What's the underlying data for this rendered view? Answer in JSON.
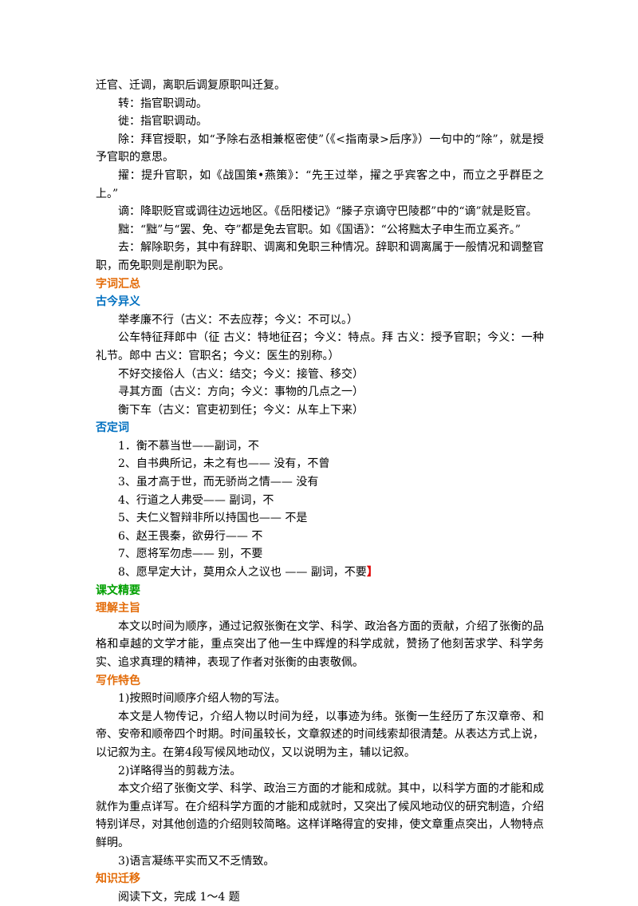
{
  "intro": [
    "迁官、迁调，离职后调复原职叫迁复。",
    "转：指官职调动。",
    "徙：指官职调动。",
    "除：拜官授职，如“予除右丞相兼枢密使”（《<指南录>后序》）一句中的“除”，就是授予官职的意思。",
    "擢：提升官职，如《战国策•燕策》：“先王过举，擢之乎宾客之中，而立之乎群臣之上。”",
    "谪：降职贬官或调往边远地区。《岳阳楼记》“滕子京谪守巴陵郡”中的“谪”就是贬官。",
    "黜：“黜”与“罢、免、夺”都是免去官职。如《国语》：“公将黜太子申生而立奚齐。”",
    "去：解除职务，其中有辞职、调离和免职三种情况。辞职和调离属于一般情况和调整官职，而免职则是削职为民。"
  ],
  "vocab": {
    "title": "字词汇总",
    "gujin": {
      "title": "古今异义",
      "items": [
        "举孝廉不行（古义：不去应荐；今义：不可以。）",
        "公车特征拜郎中（征 古义：特地征召；今义：特点。拜 古义：授予官职；今义：一种礼节。郎中 古义：官职名；今义：医生的别称。）",
        "不好交接俗人（古义：结交；今义：接管、移交）",
        "寻其方面（古义：方向；今义：事物的几点之一）",
        "衡下车（古义：官吏初到任；今义：从车上下来）"
      ]
    },
    "negation": {
      "title": "否定词",
      "items": [
        "1．衡不慕当世——副词，不",
        "2、自书典所记，未之有也—— 没有，不曾",
        "3、虽才高于世，而无骄尚之情—— 没有",
        "4、行道之人弗受—— 副词，不",
        "5、夫仁义智辩非所以持国也—— 不是",
        "6、赵王畏秦，欲毋行—— 不",
        "7、愿将军勿虑—— 别，不要",
        "8、愿早定大计，莫用众人之议也 —— 副词，不要"
      ],
      "bracket": "】"
    }
  },
  "essentials": {
    "title": "课文精要",
    "theme": {
      "title": "理解主旨",
      "text": "本文以时间为顺序，通过记叙张衡在文学、科学、政治各方面的贡献，介绍了张衡的品格和卓越的文学才能，重点突出了他一生中辉煌的科学成就，赞扬了他刻苦求学、科学务实、追求真理的精神，表现了作者对张衡的由衷敬佩。"
    },
    "style": {
      "title": "写作特色",
      "paragraphs": [
        "1)按照时间顺序介绍人物的写法。",
        "本文是人物传记，介绍人物以时间为经，以事迹为纬。张衡一生经历了东汉章帝、和帝、安帝和顺帝四个时期。时间虽较长，文章叙述的时间线索却很清楚。从表达方式上说，以记叙为主。在第4段写候风地动仪，又以说明为主，辅以记叙。",
        "2)详略得当的剪裁方法。",
        "本文介绍了张衡文学、科学、政治三方面的才能和成就。其中，以科学方面的才能和成就作为重点详写。在介绍科学方面的才能和成就时，又突出了候风地动仪的研究制造，介绍特别详尽，对其他创造的介绍则较简略。这样详略得宜的安排，使文章重点突出，人物特点鲜明。",
        "3)语言凝练平实而又不乏情致。"
      ]
    }
  },
  "transfer": {
    "title": "知识迁移",
    "text": "阅读下文，完成 1～4 题"
  }
}
